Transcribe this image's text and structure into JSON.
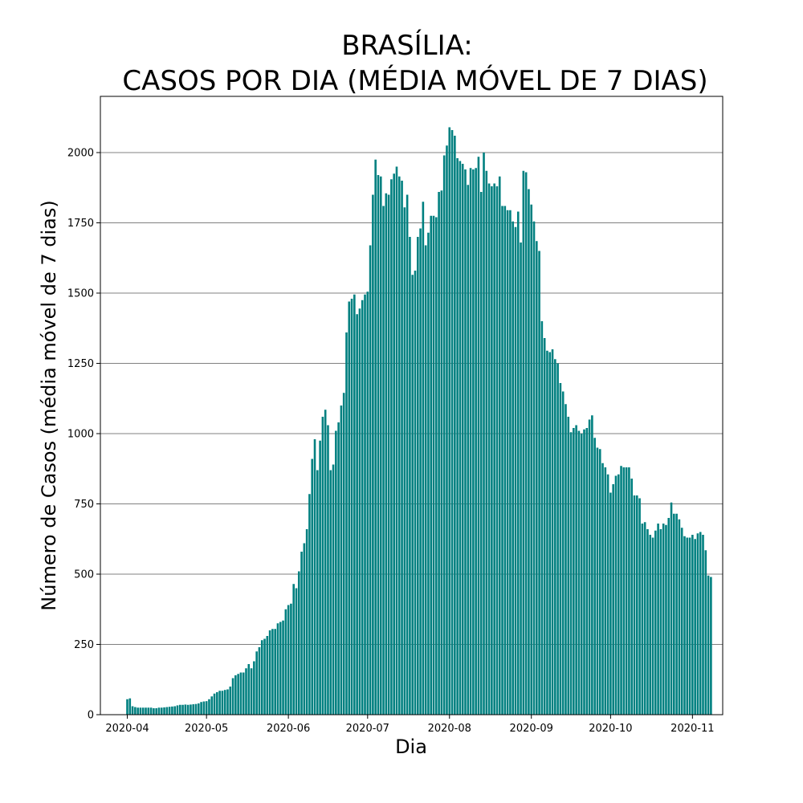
{
  "chart_data": {
    "type": "bar",
    "title_lines": [
      "BRASÍLIA:",
      "CASOS POR DIA (MÉDIA MÓVEL DE 7 DIAS)"
    ],
    "xlabel": "Dia",
    "ylabel": "Número de Casos (média móvel de 7 dias)",
    "x_start_date": "2020-04-01",
    "x_tick_labels": [
      "2020-04",
      "2020-05",
      "2020-06",
      "2020-07",
      "2020-08",
      "2020-09",
      "2020-10",
      "2020-11"
    ],
    "ylim": [
      0,
      2200
    ],
    "y_ticks": [
      0,
      250,
      500,
      750,
      1000,
      1250,
      1500,
      1750,
      2000
    ],
    "grid": "horizontal",
    "bar_color": "#008080",
    "values": [
      55,
      58,
      30,
      27,
      25,
      25,
      25,
      25,
      25,
      25,
      23,
      23,
      25,
      25,
      26,
      27,
      28,
      29,
      30,
      33,
      35,
      35,
      36,
      35,
      36,
      37,
      38,
      40,
      45,
      47,
      48,
      55,
      65,
      75,
      80,
      85,
      85,
      88,
      90,
      100,
      130,
      140,
      145,
      150,
      150,
      165,
      180,
      165,
      190,
      225,
      240,
      265,
      270,
      280,
      300,
      305,
      305,
      325,
      330,
      335,
      375,
      390,
      395,
      465,
      450,
      510,
      580,
      610,
      660,
      785,
      910,
      980,
      870,
      975,
      1060,
      1085,
      1030,
      870,
      890,
      1010,
      1040,
      1100,
      1145,
      1360,
      1470,
      1480,
      1495,
      1425,
      1445,
      1475,
      1495,
      1505,
      1670,
      1850,
      1975,
      1920,
      1915,
      1810,
      1855,
      1850,
      1905,
      1925,
      1950,
      1915,
      1900,
      1805,
      1850,
      1700,
      1565,
      1580,
      1700,
      1730,
      1825,
      1670,
      1715,
      1775,
      1775,
      1770,
      1860,
      1865,
      1990,
      2025,
      2090,
      2080,
      2060,
      1980,
      1970,
      1960,
      1940,
      1885,
      1945,
      1940,
      1945,
      1985,
      1860,
      2000,
      1935,
      1890,
      1880,
      1890,
      1880,
      1915,
      1810,
      1810,
      1795,
      1795,
      1755,
      1735,
      1790,
      1680,
      1935,
      1930,
      1870,
      1815,
      1755,
      1685,
      1650,
      1400,
      1340,
      1295,
      1290,
      1300,
      1265,
      1250,
      1180,
      1150,
      1105,
      1060,
      1005,
      1020,
      1030,
      1010,
      1000,
      1015,
      1020,
      1050,
      1065,
      985,
      950,
      945,
      895,
      880,
      855,
      790,
      820,
      850,
      855,
      885,
      880,
      880,
      880,
      840,
      780,
      780,
      770,
      680,
      685,
      660,
      640,
      630,
      655,
      680,
      660,
      680,
      675,
      700,
      755,
      715,
      715,
      695,
      665,
      635,
      630,
      630,
      640,
      625,
      645,
      650,
      640,
      585,
      495,
      490
    ]
  }
}
